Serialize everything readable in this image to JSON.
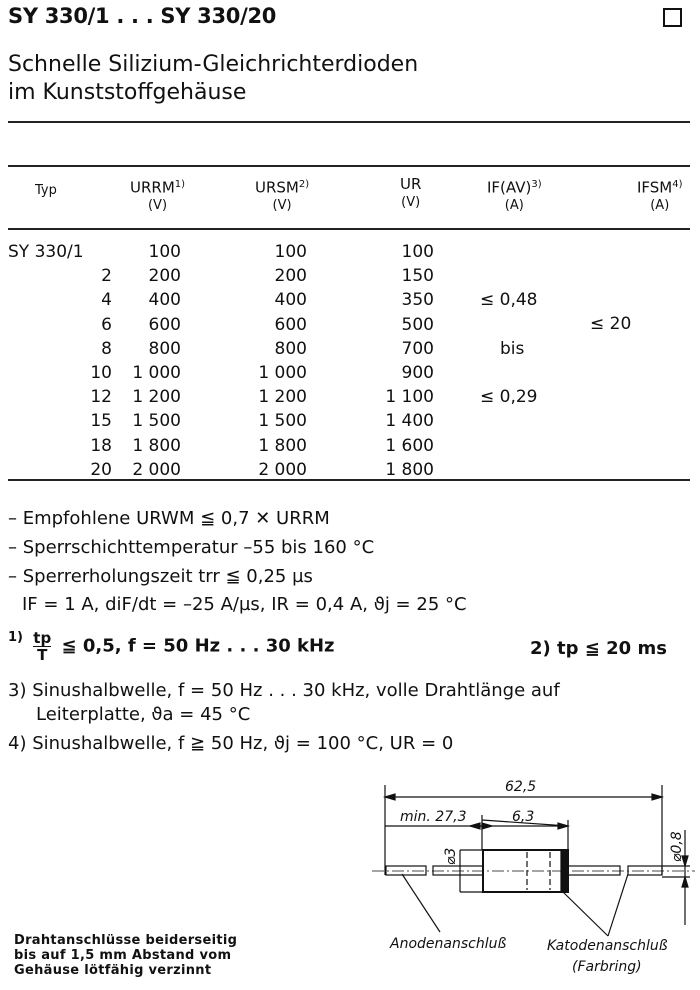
{
  "header": {
    "title": "SY 330/1 . . . SY 330/20",
    "subtitle_1": "Schnelle Silizium-Gleichrichterdioden",
    "subtitle_2": "im Kunststoffgehäuse"
  },
  "table": {
    "columns": [
      {
        "label": "Typ",
        "unit": ""
      },
      {
        "label": "URRM",
        "sup": "1)",
        "unit": "(V)"
      },
      {
        "label": "URSM",
        "sup": "2)",
        "unit": "(V)"
      },
      {
        "label": "UR",
        "sup": "",
        "unit": "(V)"
      },
      {
        "label": "IF(AV)",
        "sup": "3)",
        "unit": "(A)"
      },
      {
        "label": "IFSM",
        "sup": "4)",
        "unit": "(A)"
      }
    ],
    "rows": [
      {
        "typ": "SY 330/1",
        "urrm": "100",
        "ursm": "100",
        "ur": "100"
      },
      {
        "typ": "2",
        "urrm": "200",
        "ursm": "200",
        "ur": "150"
      },
      {
        "typ": "4",
        "urrm": "400",
        "ursm": "400",
        "ur": "350"
      },
      {
        "typ": "6",
        "urrm": "600",
        "ursm": "600",
        "ur": "500"
      },
      {
        "typ": "8",
        "urrm": "800",
        "ursm": "800",
        "ur": "700"
      },
      {
        "typ": "10",
        "urrm": "1 000",
        "ursm": "1 000",
        "ur": "900"
      },
      {
        "typ": "12",
        "urrm": "1 200",
        "ursm": "1 200",
        "ur": "1 100"
      },
      {
        "typ": "15",
        "urrm": "1 500",
        "ursm": "1 500",
        "ur": "1 400"
      },
      {
        "typ": "18",
        "urrm": "1 800",
        "ursm": "1 800",
        "ur": "1 600"
      },
      {
        "typ": "20",
        "urrm": "2 000",
        "ursm": "2 000",
        "ur": "1 800"
      }
    ],
    "ifav_max": "≤ 0,48",
    "ifav_bis": "bis",
    "ifav_min": "≤ 0,29",
    "ifsm": "≤ 20"
  },
  "notes": {
    "n1": "– Empfohlene URWM ≦ 0,7 ✕ URRM",
    "n2": "– Sperrschichttemperatur –55 bis 160 °C",
    "n3": "– Sperrerholungszeit trr ≦ 0,25 µs",
    "n4": "IF = 1 A, diF/dt = –25 A/µs, IR = 0,4 A, ϑj = 25 °C",
    "f1_mark": "1)",
    "f1_num": "tp",
    "f1_den": "T",
    "f1_text": "≦ 0,5, f = 50 Hz . . . 30 kHz",
    "f2": "2) tp ≦ 20 ms",
    "f3a": "3) Sinushalbwelle,  f = 50 Hz . . . 30 kHz,  volle  Drahtlänge  auf",
    "f3b": "Leiterplatte, ϑa = 45 °C",
    "f4": "4) Sinushalbwelle, f ≧ 50 Hz,  ϑj = 100 °C, UR = 0"
  },
  "drawing": {
    "total_length": "62,5",
    "lead_length": "min. 27,3",
    "body_length": "6,3",
    "body_diameter": "⌀3",
    "lead_diameter": "⌀0,8",
    "anode_label": "Anodenanschluß",
    "cathode_label": "Katodenanschluß",
    "cathode_sub": "(Farbring)"
  },
  "bottom_note": {
    "line1": "Drahtanschlüsse beiderseitig",
    "line2": "bis auf 1,5 mm Abstand vom",
    "line3": "Gehäuse lötfähig verzinnt"
  }
}
